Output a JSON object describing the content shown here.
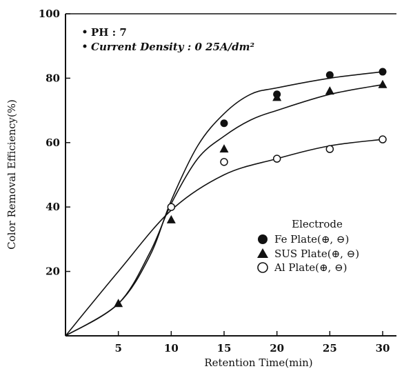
{
  "chart_data": {
    "type": "line",
    "xlabel": "Retention Time(min)",
    "ylabel": "Color Removal Efficiency(%)",
    "xlim": [
      0,
      30
    ],
    "ylim": [
      0,
      100
    ],
    "x_ticks": [
      "5",
      "10",
      "15",
      "20",
      "25",
      "30"
    ],
    "y_ticks": [
      "20",
      "40",
      "60",
      "80",
      "100"
    ],
    "grid": false,
    "annotations": [
      "PH : 7",
      "Current Density : 0 25A/dm²"
    ],
    "legend": {
      "title": "Electrode",
      "placement": "bottom-right",
      "entries": [
        "Fe Plate(⊕, ⊖)",
        "SUS Plate(⊕, ⊖)",
        "Al Plate(⊕, ⊖)"
      ]
    },
    "series": [
      {
        "name": "Fe Plate(⊕, ⊖)",
        "marker": "filled-circle",
        "points": [
          [
            15,
            66
          ],
          [
            20,
            75
          ],
          [
            25,
            81
          ],
          [
            30,
            82
          ]
        ],
        "curve": [
          [
            0,
            0
          ],
          [
            5,
            10
          ],
          [
            8,
            25
          ],
          [
            10,
            42
          ],
          [
            12.5,
            59
          ],
          [
            15,
            69
          ],
          [
            17.5,
            75
          ],
          [
            20,
            77
          ],
          [
            25,
            80
          ],
          [
            30,
            82
          ]
        ]
      },
      {
        "name": "SUS Plate(⊕, ⊖)",
        "marker": "filled-triangle",
        "points": [
          [
            5,
            10
          ],
          [
            10,
            36
          ],
          [
            15,
            58
          ],
          [
            20,
            74
          ],
          [
            25,
            76
          ],
          [
            30,
            78
          ]
        ],
        "curve": [
          [
            0,
            0
          ],
          [
            5,
            10
          ],
          [
            8,
            26
          ],
          [
            10,
            41
          ],
          [
            12.5,
            55
          ],
          [
            15,
            62
          ],
          [
            17.5,
            67
          ],
          [
            20,
            70
          ],
          [
            25,
            75
          ],
          [
            30,
            78
          ]
        ]
      },
      {
        "name": "Al Plate(⊕, ⊖)",
        "marker": "open-circle",
        "points": [
          [
            10,
            40
          ],
          [
            15,
            54
          ],
          [
            20,
            55
          ],
          [
            25,
            58
          ],
          [
            30,
            61
          ]
        ],
        "curve": [
          [
            0,
            0
          ],
          [
            5,
            20
          ],
          [
            10,
            39
          ],
          [
            15,
            50
          ],
          [
            20,
            55
          ],
          [
            25,
            59
          ],
          [
            30,
            61
          ]
        ]
      }
    ]
  }
}
